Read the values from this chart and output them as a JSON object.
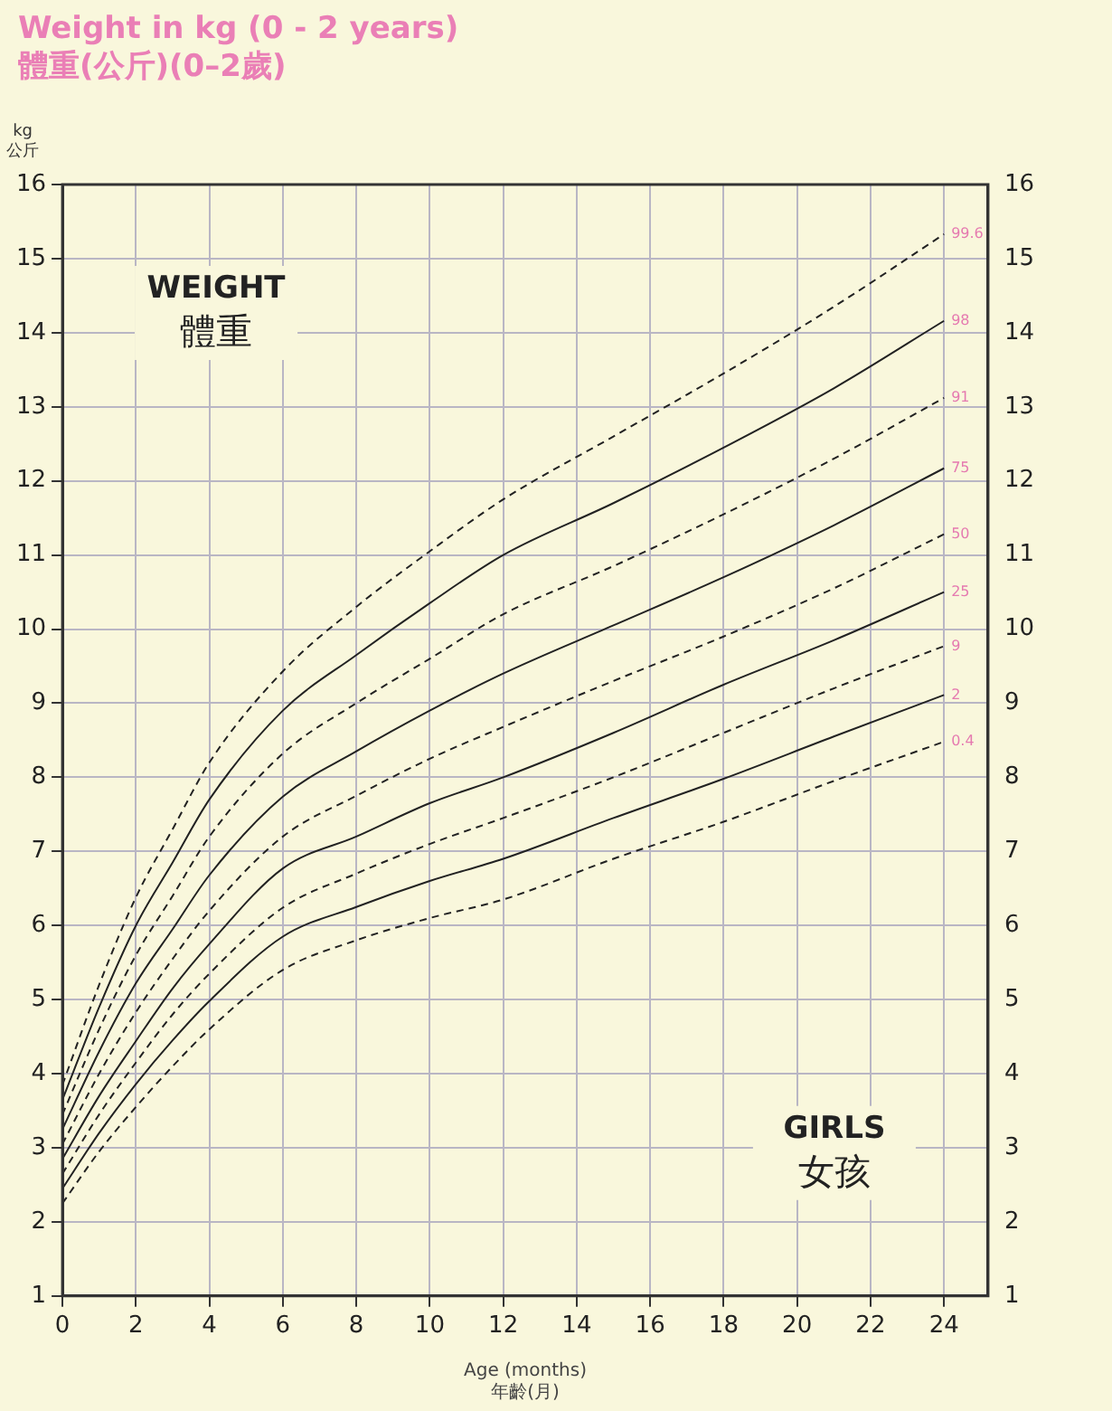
{
  "chart_data": {
    "type": "line",
    "title": "Weight in kg (0 - 2 years)",
    "subtitle": "體重(公斤)(0–2歲)",
    "xlabel": "Age (months)\n年齡(月)",
    "ylabel": "kg\n公斤",
    "annotations": [
      "WEIGHT\n體重",
      "GIRLS\n女孩"
    ],
    "x": [
      0,
      1,
      2,
      3,
      4,
      6,
      8,
      10,
      12,
      15,
      18,
      21,
      24
    ],
    "series": [
      {
        "name": "0.4",
        "color": "#222222",
        "line_style": "dashed",
        "values": [
          2.25,
          2.95,
          3.55,
          4.1,
          4.6,
          5.4,
          5.8,
          6.1,
          6.35,
          6.9,
          7.4,
          7.95,
          8.48
        ]
      },
      {
        "name": "2",
        "color": "#222222",
        "line_style": "solid",
        "values": [
          2.45,
          3.2,
          3.86,
          4.45,
          4.98,
          5.85,
          6.25,
          6.6,
          6.9,
          7.45,
          7.98,
          8.55,
          9.11
        ]
      },
      {
        "name": "9",
        "color": "#222222",
        "line_style": "dashed",
        "values": [
          2.65,
          3.45,
          4.15,
          4.8,
          5.35,
          6.24,
          6.7,
          7.1,
          7.45,
          8.0,
          8.6,
          9.2,
          9.77
        ]
      },
      {
        "name": "25",
        "color": "#222222",
        "line_style": "solid",
        "values": [
          2.85,
          3.7,
          4.44,
          5.15,
          5.75,
          6.77,
          7.2,
          7.65,
          8.0,
          8.6,
          9.25,
          9.85,
          10.5
        ]
      },
      {
        "name": "50",
        "color": "#222222",
        "line_style": "dashed",
        "values": [
          3.05,
          4.0,
          4.83,
          5.55,
          6.2,
          7.2,
          7.75,
          8.25,
          8.68,
          9.3,
          9.9,
          10.55,
          11.28
        ]
      },
      {
        "name": "75",
        "color": "#222222",
        "line_style": "solid",
        "values": [
          3.25,
          4.3,
          5.22,
          5.95,
          6.68,
          7.74,
          8.35,
          8.9,
          9.4,
          10.05,
          10.7,
          11.4,
          12.17
        ]
      },
      {
        "name": "91",
        "color": "#222222",
        "line_style": "dashed",
        "values": [
          3.45,
          4.6,
          5.6,
          6.4,
          7.2,
          8.32,
          9.0,
          9.6,
          10.2,
          10.85,
          11.55,
          12.3,
          13.12
        ]
      },
      {
        "name": "98",
        "color": "#222222",
        "line_style": "solid",
        "values": [
          3.65,
          4.9,
          6.0,
          6.85,
          7.7,
          8.9,
          9.65,
          10.35,
          11.0,
          11.7,
          12.45,
          13.25,
          14.16
        ]
      },
      {
        "name": "99.6",
        "color": "#222222",
        "line_style": "dashed",
        "values": [
          3.85,
          5.2,
          6.38,
          7.3,
          8.2,
          9.43,
          10.3,
          11.05,
          11.75,
          12.6,
          13.45,
          14.35,
          15.33
        ]
      }
    ],
    "xlim": [
      0,
      25.2
    ],
    "xticks": [
      0,
      2,
      4,
      6,
      8,
      10,
      12,
      14,
      16,
      18,
      20,
      22,
      24
    ],
    "ylim": [
      1,
      16
    ],
    "yticks": [
      1,
      2,
      3,
      4,
      5,
      6,
      7,
      8,
      9,
      10,
      11,
      12,
      13,
      14,
      15,
      16
    ],
    "y2lim": [
      1,
      16
    ],
    "y2ticks": [
      1,
      2,
      3,
      4,
      5,
      6,
      7,
      8,
      9,
      10,
      11,
      12,
      13,
      14,
      15,
      16
    ],
    "grid": true,
    "legend": false,
    "marker": "none"
  }
}
